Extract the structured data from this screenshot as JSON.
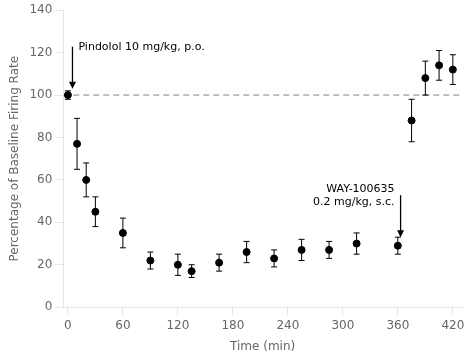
{
  "chart_data": {
    "type": "scatter",
    "xlabel": "Time (min)",
    "ylabel": "Percentage of Baseline Firing Rate",
    "x": [
      0,
      10,
      20,
      30,
      60,
      90,
      120,
      135,
      165,
      195,
      225,
      255,
      285,
      315,
      360,
      375,
      390,
      405,
      420
    ],
    "values": [
      100,
      77,
      60,
      45,
      35,
      22,
      20,
      17,
      21,
      26,
      23,
      27,
      27,
      30,
      29,
      88,
      108,
      114,
      112
    ],
    "yerr": [
      2,
      12,
      8,
      7,
      7,
      4,
      5,
      3,
      4,
      5,
      4,
      5,
      4,
      5,
      4,
      10,
      8,
      7,
      7
    ],
    "color": "black",
    "marker": "circle",
    "xlim": [
      -5,
      430
    ],
    "ylim": [
      0,
      140
    ],
    "xticks": [
      0,
      60,
      120,
      180,
      240,
      300,
      360,
      420
    ],
    "yticks": [
      0,
      20,
      40,
      60,
      80,
      100,
      120,
      140
    ],
    "grid": false,
    "baseline": 100,
    "annotations": [
      {
        "text": "Pindolol 10 mg/kg, p.o.",
        "x": 5,
        "y": 103
      },
      {
        "text": "WAY-100635\n0.2 mg/kg, s.c.",
        "x": 363,
        "y": 33
      }
    ]
  }
}
